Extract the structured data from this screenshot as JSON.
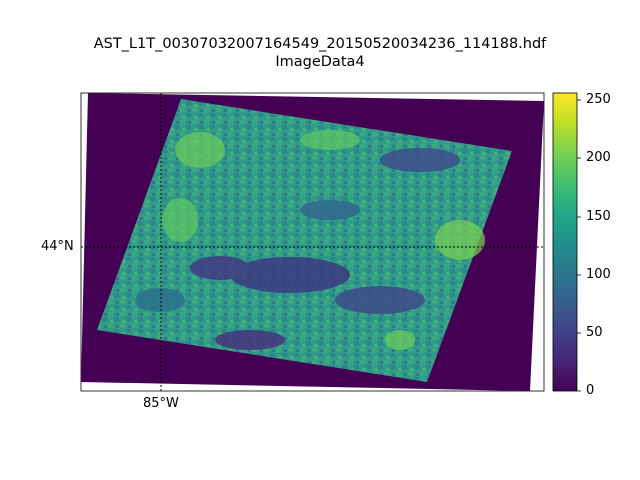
{
  "figure": {
    "title": "AST_L1T_00307032007164549_20150520034236_114188.hdf",
    "subtitle": "ImageData4"
  },
  "map": {
    "type": "heatmap",
    "projection_graticule": {
      "parallel_label": "44°N",
      "meridian_label": "85°W",
      "line_style": "dotted",
      "line_color": "#000000"
    },
    "background_value": 0,
    "scene_color_hint": "green-teal dominant (values ~100–200) with purple patches"
  },
  "colorbar": {
    "colormap": "viridis",
    "range": [
      0,
      255
    ],
    "ticks": [
      "0",
      "50",
      "100",
      "150",
      "200",
      "250"
    ],
    "colors": {
      "low": "#440154",
      "mid": "#21918c",
      "high": "#fde725"
    }
  }
}
